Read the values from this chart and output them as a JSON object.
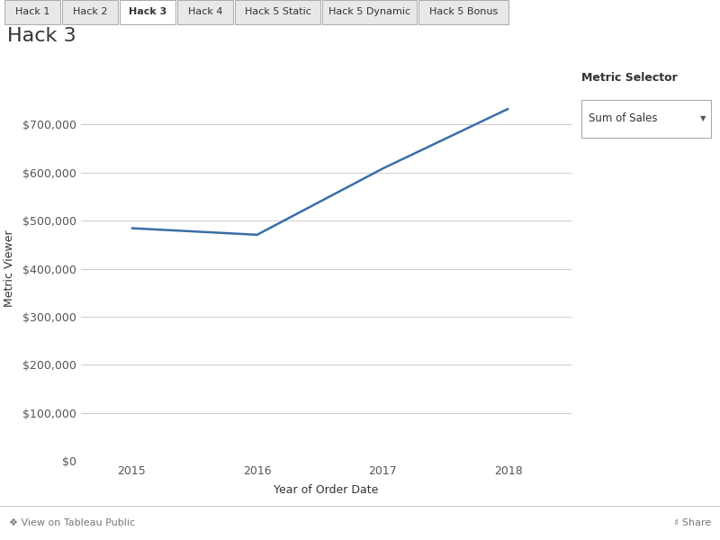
{
  "title": "Hack 3",
  "tab_labels": [
    "Hack 1",
    "Hack 2",
    "Hack 3",
    "Hack 4",
    "Hack 5 Static",
    "Hack 5 Dynamic",
    "Hack 5 Bonus"
  ],
  "active_tab": "Hack 3",
  "x_values": [
    2015,
    2016,
    2017,
    2018
  ],
  "y_values": [
    484247,
    470533,
    608473,
    733215
  ],
  "xlabel": "Year of Order Date",
  "ylabel": "Metric Viewer",
  "ylim": [
    0,
    800000
  ],
  "yticks": [
    0,
    100000,
    200000,
    300000,
    400000,
    500000,
    600000,
    700000
  ],
  "ytick_labels": [
    "$0",
    "$100,000",
    "$200,000",
    "$300,000",
    "$400,000",
    "$500,000",
    "$600,000",
    "$700,000"
  ],
  "line_color": "#3a6ea5",
  "line_width": 1.8,
  "bg_color": "#ffffff",
  "plot_bg_color": "#ffffff",
  "grid_color": "#d0d0d0",
  "tab_bar_bg": "#f2f2f2",
  "tab_active_bg": "#ffffff",
  "tab_inactive_bg": "#e8e8e8",
  "metric_selector_label": "Metric Selector",
  "metric_selector_value": "Sum of Sales",
  "footer_text": "View on Tableau Public",
  "font_color": "#333333",
  "tab_font_size": 8,
  "title_font_size": 16,
  "axis_font_size": 9,
  "label_font_size": 9
}
